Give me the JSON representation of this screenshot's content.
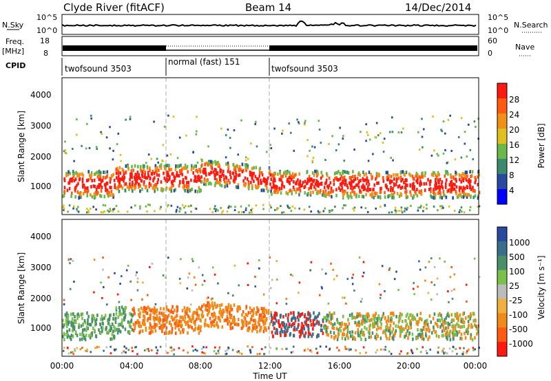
{
  "header": {
    "radar": "Clyde River (fitACF)",
    "beam": "Beam 14",
    "date": "14/Dec/2014"
  },
  "strip": {
    "nsky_label": "N.Sky",
    "nsky_ticks": [
      "10^5",
      "10^0"
    ],
    "nsearch_label": "N.Search",
    "nsearch_ticks": [
      "10^5",
      "10^0"
    ],
    "freq_label_line1": "Freq.",
    "freq_label_line2": "[MHz]",
    "freq_ticks": [
      "18",
      "8"
    ],
    "nave_label": "Nave",
    "nave_ticks": [
      "60",
      "0"
    ],
    "cpid_label": "CPID",
    "cpid_segments": [
      {
        "name": "twofsound 3503",
        "start": 0,
        "end": 6
      },
      {
        "name": "normal (fast) 151",
        "start": 6,
        "end": 12
      },
      {
        "name": "twofsound 3503",
        "start": 12,
        "end": 24
      }
    ]
  },
  "panels": {
    "power": {
      "ylabel": "Slant Range [km]",
      "yticks": [
        "1000",
        "2000",
        "3000",
        "4000"
      ],
      "cb_label": "Power [dB]",
      "cb_ticks": [
        "4",
        "8",
        "12",
        "16",
        "20",
        "24",
        "28"
      ]
    },
    "velocity": {
      "ylabel": "Slant Range [km]",
      "yticks": [
        "1000",
        "2000",
        "3000",
        "4000"
      ],
      "cb_label": "Velocity [m s⁻¹]",
      "cb_ticks": [
        "1000",
        "500",
        "100",
        "25",
        "-25",
        "-100",
        "-500",
        "-1000"
      ]
    }
  },
  "xaxis": {
    "label": "Time UT",
    "ticks": [
      "00:00",
      "04:00",
      "08:00",
      "12:00",
      "16:00",
      "20:00",
      "00:00"
    ]
  },
  "chart_data": {
    "type": "heatmap",
    "x_range_hours": [
      0,
      24
    ],
    "y_range_km": [
      200,
      4500
    ],
    "colorbars": {
      "power_colors": [
        "#0000ff",
        "#2a4aa0",
        "#3a8a6e",
        "#6ab84a",
        "#e0c020",
        "#f09018",
        "#ff5a10",
        "#ff1a10"
      ],
      "velocity_colors": [
        "#2a4aa0",
        "#3a6e8a",
        "#4a8e6a",
        "#7ac04a",
        "#bcbcbc",
        "#f0b040",
        "#f08a18",
        "#ff5a10",
        "#ff1a10"
      ]
    }
  }
}
